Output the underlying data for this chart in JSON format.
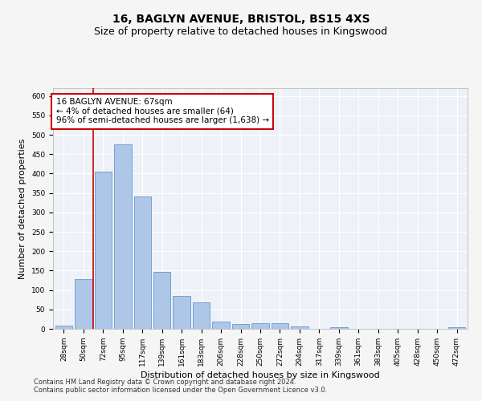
{
  "title": "16, BAGLYN AVENUE, BRISTOL, BS15 4XS",
  "subtitle": "Size of property relative to detached houses in Kingswood",
  "xlabel": "Distribution of detached houses by size in Kingswood",
  "ylabel": "Number of detached properties",
  "categories": [
    "28sqm",
    "50sqm",
    "72sqm",
    "95sqm",
    "117sqm",
    "139sqm",
    "161sqm",
    "183sqm",
    "206sqm",
    "228sqm",
    "250sqm",
    "272sqm",
    "294sqm",
    "317sqm",
    "339sqm",
    "361sqm",
    "383sqm",
    "405sqm",
    "428sqm",
    "450sqm",
    "472sqm"
  ],
  "values": [
    9,
    128,
    405,
    476,
    340,
    146,
    85,
    68,
    19,
    12,
    15,
    15,
    7,
    0,
    5,
    0,
    0,
    0,
    0,
    0,
    5
  ],
  "bar_color": "#aec6e8",
  "bar_edge_color": "#6699cc",
  "annotation_box_color": "#cc0000",
  "annotation_line_color": "#cc0000",
  "annotation_line1": "16 BAGLYN AVENUE: 67sqm",
  "annotation_line2": "← 4% of detached houses are smaller (64)",
  "annotation_line3": "96% of semi-detached houses are larger (1,638) →",
  "property_line_x": 1.5,
  "ylim": [
    0,
    620
  ],
  "yticks": [
    0,
    50,
    100,
    150,
    200,
    250,
    300,
    350,
    400,
    450,
    500,
    550,
    600
  ],
  "footer_line1": "Contains HM Land Registry data © Crown copyright and database right 2024.",
  "footer_line2": "Contains public sector information licensed under the Open Government Licence v3.0.",
  "bg_color": "#eef2f8",
  "grid_color": "#ffffff",
  "fig_bg_color": "#f5f5f5",
  "title_fontsize": 10,
  "subtitle_fontsize": 9,
  "annotation_fontsize": 7.5,
  "axis_label_fontsize": 8,
  "tick_fontsize": 6.5,
  "footer_fontsize": 6,
  "ylabel_fontsize": 8
}
